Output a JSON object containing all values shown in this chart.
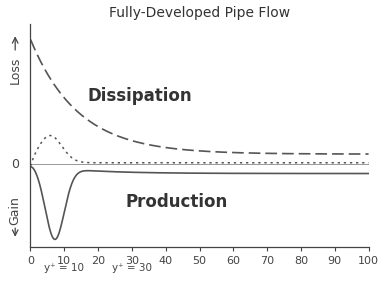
{
  "title": "Fully-Developed Pipe Flow",
  "y_label_loss": "Loss",
  "y_label_gain": "Gain",
  "zero_label": "0",
  "xlim": [
    0,
    100
  ],
  "x_ticks": [
    0,
    10,
    20,
    30,
    40,
    50,
    60,
    70,
    80,
    90,
    100
  ],
  "background_color": "#ffffff",
  "line_color": "#555555",
  "title_fontsize": 10,
  "label_fontsize": 9,
  "annotation_fontsize": 12,
  "tick_fontsize": 8,
  "dissipation_label": "Dissipation",
  "production_label": "Production",
  "yplus10_label": "y⁺ = 10",
  "yplus30_label": "y⁺ = 30"
}
